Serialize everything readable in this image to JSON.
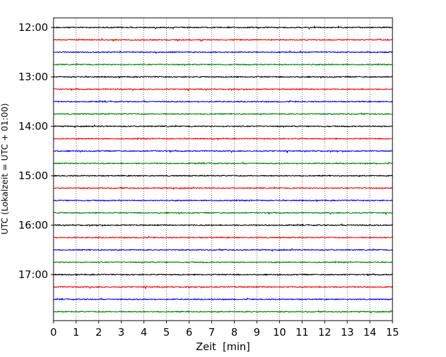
{
  "chart_data": {
    "type": "line",
    "title": "",
    "xlabel": "Zeit  [min]",
    "ylabel": "UTC (Lokalzeit = UTC + 01:00)",
    "xlim": [
      0,
      15
    ],
    "x_ticks": [
      "0",
      "1",
      "2",
      "3",
      "4",
      "5",
      "6",
      "7",
      "8",
      "9",
      "10",
      "11",
      "12",
      "13",
      "14",
      "15"
    ],
    "y_ticks": [
      "12:00",
      "13:00",
      "14:00",
      "15:00",
      "16:00",
      "17:00"
    ],
    "grid": "vertical dotted",
    "legend": "none",
    "trace_interval_min": 15,
    "trace_color_cycle": [
      "#000000",
      "#ff0000",
      "#0000ff",
      "#008000"
    ],
    "traces": [
      {
        "start": "12:00"
      },
      {
        "start": "12:15"
      },
      {
        "start": "12:30"
      },
      {
        "start": "12:45"
      },
      {
        "start": "13:00"
      },
      {
        "start": "13:15"
      },
      {
        "start": "13:30"
      },
      {
        "start": "13:45"
      },
      {
        "start": "14:00"
      },
      {
        "start": "14:15"
      },
      {
        "start": "14:30"
      },
      {
        "start": "14:45"
      },
      {
        "start": "15:00"
      },
      {
        "start": "15:15"
      },
      {
        "start": "15:30"
      },
      {
        "start": "15:45"
      },
      {
        "start": "16:00"
      },
      {
        "start": "16:15"
      },
      {
        "start": "16:30"
      },
      {
        "start": "16:45"
      },
      {
        "start": "17:00"
      },
      {
        "start": "17:15"
      },
      {
        "start": "17:30"
      },
      {
        "start": "17:45"
      }
    ]
  }
}
